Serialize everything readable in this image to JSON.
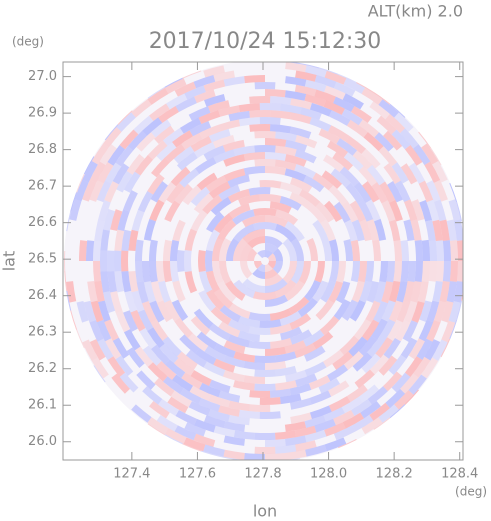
{
  "chart_data": {
    "type": "radar-image",
    "title": "2017/10/24 15:12:30",
    "subtitle": "ALT(km) 2.0",
    "x_label": "lon",
    "y_label": "lat",
    "x_unit": "(deg)",
    "y_unit": "(deg)",
    "xlim": [
      127.19,
      128.41
    ],
    "xticks": [
      127.4,
      127.6,
      127.8,
      {
        "value": 128.0,
        "label": "128.0"
      },
      128.2,
      128.4
    ],
    "ylim": [
      25.95,
      27.04
    ],
    "yticks": [
      {
        "value": 26.0,
        "label": "26.0"
      },
      26.1,
      26.2,
      26.3,
      26.4,
      26.5,
      26.6,
      26.7,
      26.8,
      26.9,
      {
        "value": 27.0,
        "label": "27.0"
      }
    ]
  }
}
